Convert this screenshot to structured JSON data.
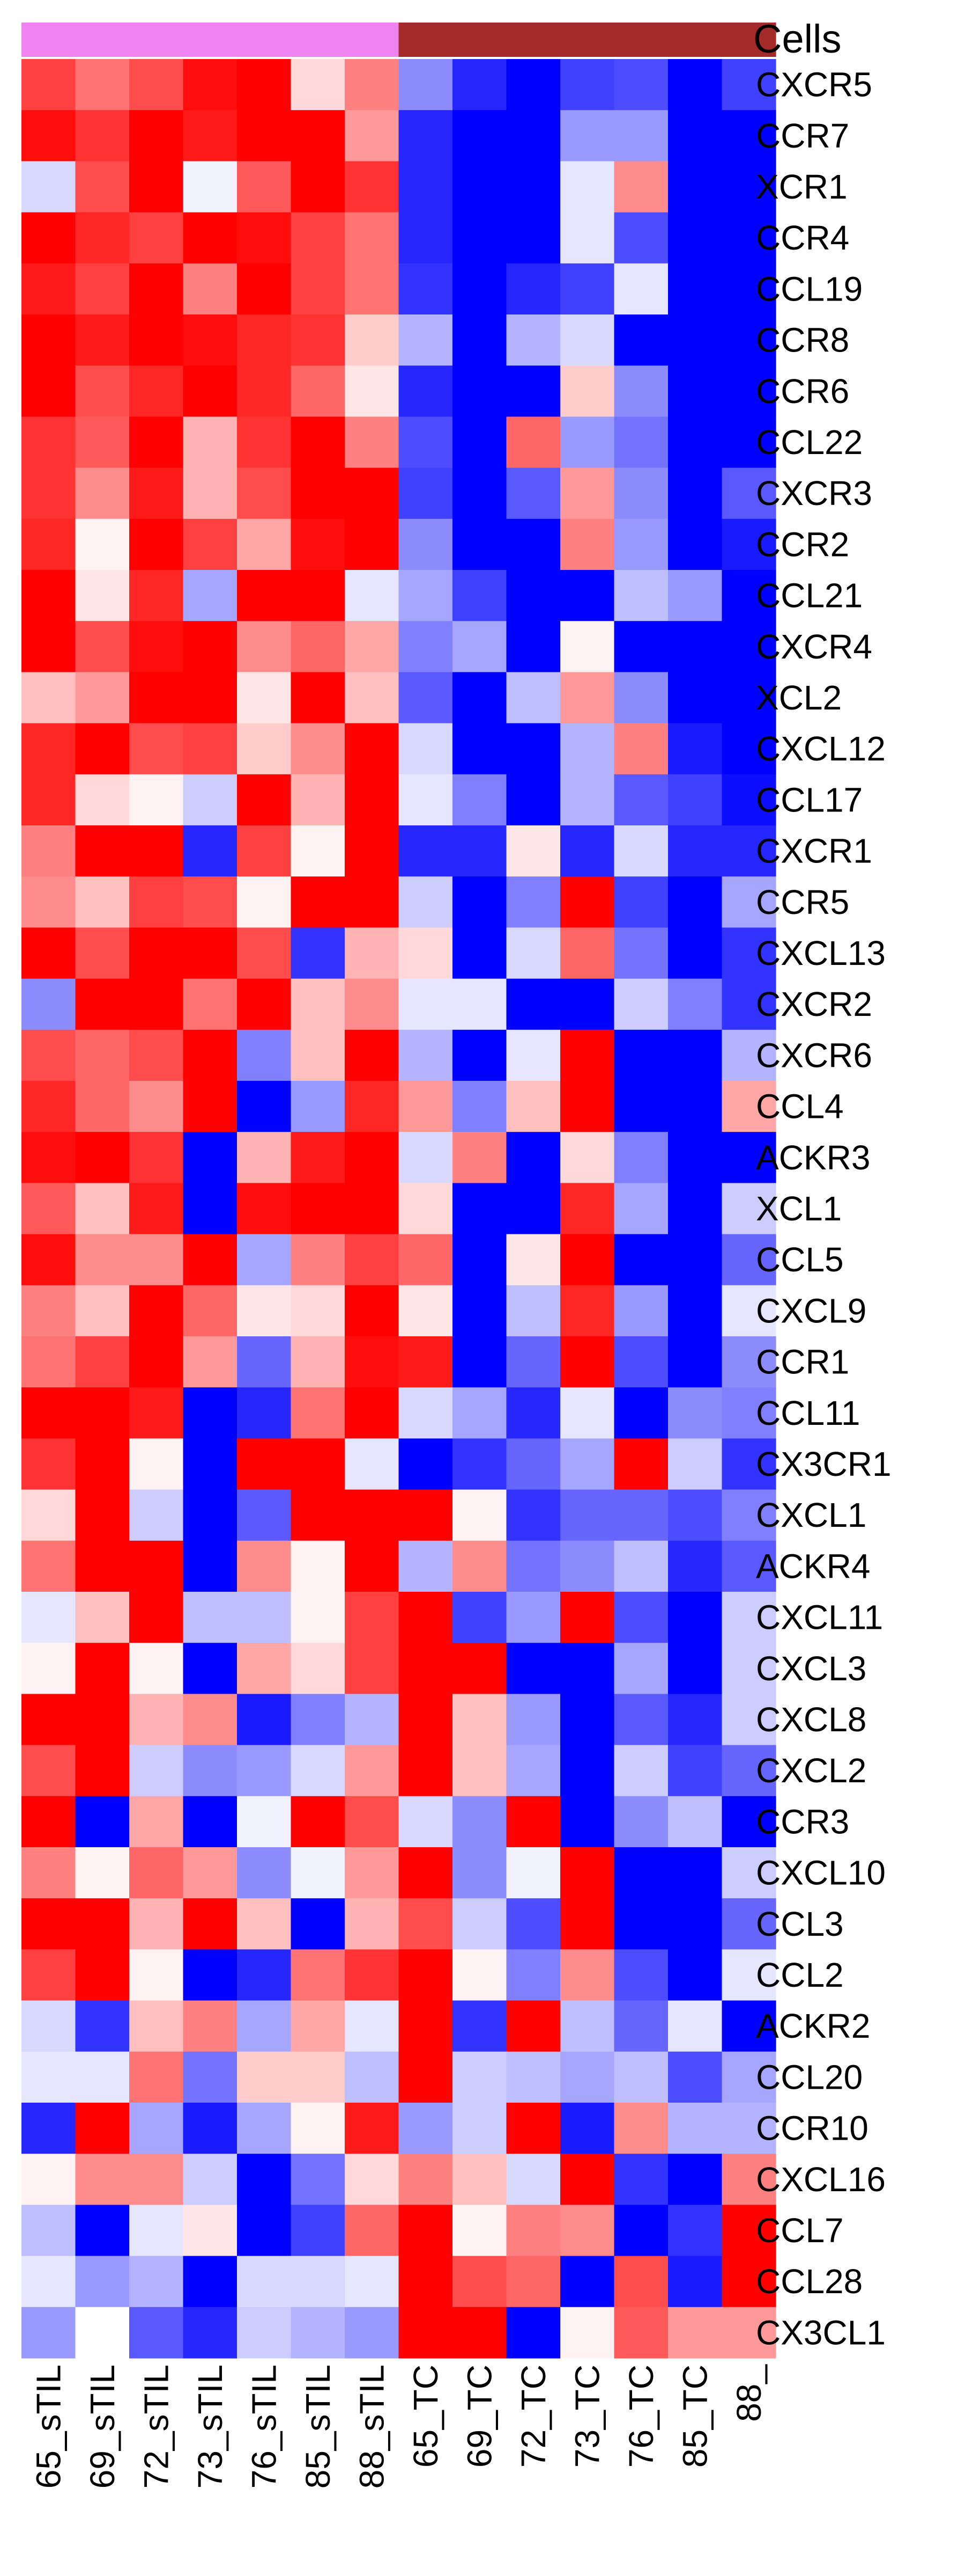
{
  "chart_data": {
    "type": "heatmap",
    "annotation": {
      "label": "Cells",
      "groups": [
        {
          "color": "#EE82EE",
          "columns": [
            "65_sTIL",
            "69_sTIL",
            "72_sTIL",
            "73_sTIL",
            "76_sTIL",
            "85_sTIL",
            "88_sTIL"
          ]
        },
        {
          "color": "#A52A2A",
          "columns": [
            "65_TC",
            "69_TC",
            "72_TC",
            "73_TC",
            "76_TC",
            "85_TC",
            "88_"
          ]
        }
      ]
    },
    "columns": [
      "65_sTIL",
      "69_sTIL",
      "72_sTIL",
      "73_sTIL",
      "76_sTIL",
      "85_sTIL",
      "88_sTIL",
      "65_TC",
      "69_TC",
      "72_TC",
      "73_TC",
      "76_TC",
      "85_TC",
      "88_"
    ],
    "rows": [
      "CXCR5",
      "CCR7",
      "XCR1",
      "CCR4",
      "CCL19",
      "CCR8",
      "CCR6",
      "CCL22",
      "CXCR3",
      "CCR2",
      "CCL21",
      "CXCR4",
      "XCL2",
      "CXCL12",
      "CCL17",
      "CXCR1",
      "CCR5",
      "CXCL13",
      "CXCR2",
      "CXCR6",
      "CCL4",
      "ACKR3",
      "XCL1",
      "CCL5",
      "CXCL9",
      "CCR1",
      "CCL11",
      "CX3CR1",
      "CXCL1",
      "ACKR4",
      "CXCL11",
      "CXCL3",
      "CXCL8",
      "CXCL2",
      "CCR3",
      "CXCL10",
      "CCL3",
      "CCL2",
      "ACKR2",
      "CCL20",
      "CCR10",
      "CXCL16",
      "CCL7",
      "CCL28",
      "CX3CL1"
    ],
    "colorscale": {
      "low": "#0000FF",
      "mid": "#FFFFFF",
      "high": "#FF0000",
      "range": [
        -1,
        1
      ]
    },
    "values": [
      [
        0.75,
        0.55,
        0.7,
        0.95,
        1.0,
        0.15,
        0.5,
        -0.45,
        -0.85,
        -1.0,
        -0.75,
        -0.7,
        -1.0,
        -0.75
      ],
      [
        0.95,
        0.8,
        1.0,
        0.9,
        1.0,
        1.0,
        0.4,
        -0.85,
        -1.0,
        -1.0,
        -0.4,
        -0.4,
        -1.0,
        -1.0
      ],
      [
        -0.15,
        0.7,
        1.0,
        -0.05,
        0.65,
        1.0,
        0.8,
        -0.85,
        -1.0,
        -1.0,
        -0.1,
        0.45,
        -1.0,
        -1.0
      ],
      [
        1.0,
        0.85,
        0.75,
        1.0,
        0.95,
        0.75,
        0.55,
        -0.85,
        -1.0,
        -1.0,
        -0.1,
        -0.7,
        -1.0,
        -1.0
      ],
      [
        0.9,
        0.75,
        1.0,
        0.5,
        1.0,
        0.75,
        0.55,
        -0.8,
        -1.0,
        -0.85,
        -0.75,
        -0.1,
        -1.0,
        -1.0
      ],
      [
        1.0,
        0.9,
        1.0,
        0.95,
        0.85,
        0.8,
        0.2,
        -0.3,
        -1.0,
        -0.3,
        -0.15,
        -1.0,
        -1.0,
        -1.0
      ],
      [
        1.0,
        0.7,
        0.85,
        1.0,
        0.85,
        0.6,
        0.1,
        -0.85,
        -1.0,
        -1.0,
        0.2,
        -0.45,
        -1.0,
        -1.0
      ],
      [
        0.8,
        0.65,
        1.0,
        0.3,
        0.8,
        1.0,
        0.5,
        -0.7,
        -1.0,
        0.6,
        -0.4,
        -0.55,
        -1.0,
        -1.0
      ],
      [
        0.8,
        0.45,
        0.9,
        0.3,
        0.7,
        1.0,
        1.0,
        -0.75,
        -1.0,
        -0.65,
        0.4,
        -0.45,
        -1.0,
        -0.65
      ],
      [
        0.85,
        0.05,
        1.0,
        0.75,
        0.35,
        0.95,
        1.0,
        -0.45,
        -1.0,
        -1.0,
        0.5,
        -0.4,
        -1.0,
        -0.9
      ],
      [
        1.0,
        0.1,
        0.85,
        -0.35,
        1.0,
        1.0,
        -0.1,
        -0.35,
        -0.75,
        -1.0,
        -1.0,
        -0.25,
        -0.4,
        -1.0
      ],
      [
        1.0,
        0.7,
        0.95,
        1.0,
        0.45,
        0.6,
        0.35,
        -0.5,
        -0.35,
        -1.0,
        0.05,
        -1.0,
        -1.0,
        -1.0
      ],
      [
        0.25,
        0.4,
        1.0,
        1.0,
        0.1,
        1.0,
        0.25,
        -0.65,
        -1.0,
        -0.25,
        0.4,
        -0.45,
        -1.0,
        -1.0
      ],
      [
        0.85,
        1.0,
        0.7,
        0.75,
        0.2,
        0.45,
        1.0,
        -0.15,
        -1.0,
        -1.0,
        -0.3,
        0.5,
        -0.9,
        -1.0
      ],
      [
        0.85,
        0.15,
        0.05,
        -0.2,
        1.0,
        0.3,
        1.0,
        -0.1,
        -0.5,
        -1.0,
        -0.3,
        -0.65,
        -0.75,
        -0.95
      ],
      [
        0.5,
        1.0,
        1.0,
        -0.85,
        0.75,
        0.05,
        1.0,
        -0.85,
        -0.85,
        0.1,
        -0.85,
        -0.15,
        -0.85,
        -0.85
      ],
      [
        0.45,
        0.25,
        0.75,
        0.7,
        0.05,
        1.0,
        1.0,
        -0.2,
        -1.0,
        -0.5,
        1.0,
        -0.75,
        -1.0,
        -0.35
      ],
      [
        1.0,
        0.7,
        1.0,
        1.0,
        0.7,
        -0.8,
        0.3,
        0.15,
        -1.0,
        -0.15,
        0.6,
        -0.55,
        -1.0,
        -0.8
      ],
      [
        -0.45,
        1.0,
        1.0,
        0.55,
        1.0,
        0.25,
        0.45,
        -0.1,
        -0.1,
        -1.0,
        -1.0,
        -0.2,
        -0.5,
        -0.8
      ],
      [
        0.7,
        0.6,
        0.7,
        1.0,
        -0.5,
        0.25,
        1.0,
        -0.3,
        -1.0,
        -0.1,
        1.0,
        -1.0,
        -1.0,
        -0.3
      ],
      [
        0.85,
        0.6,
        0.45,
        1.0,
        -1.0,
        -0.4,
        0.85,
        0.4,
        -0.5,
        0.25,
        1.0,
        -1.0,
        -1.0,
        0.35
      ],
      [
        0.95,
        1.0,
        0.8,
        -1.0,
        0.3,
        0.9,
        1.0,
        -0.15,
        0.5,
        -1.0,
        0.15,
        -0.5,
        -1.0,
        -1.0
      ],
      [
        0.65,
        0.25,
        0.9,
        -1.0,
        0.95,
        1.0,
        1.0,
        0.15,
        -1.0,
        -1.0,
        0.85,
        -0.35,
        -1.0,
        -0.2
      ],
      [
        0.95,
        0.45,
        0.45,
        1.0,
        -0.35,
        0.5,
        0.75,
        0.6,
        -1.0,
        0.1,
        1.0,
        -1.0,
        -1.0,
        -0.6
      ],
      [
        0.5,
        0.25,
        1.0,
        0.6,
        0.1,
        0.15,
        1.0,
        0.1,
        -1.0,
        -0.25,
        0.85,
        -0.4,
        -1.0,
        -0.1
      ],
      [
        0.55,
        0.75,
        1.0,
        0.4,
        -0.6,
        0.3,
        0.95,
        0.9,
        -1.0,
        -0.6,
        1.0,
        -0.7,
        -1.0,
        -0.45
      ],
      [
        1.0,
        1.0,
        0.9,
        -1.0,
        -0.85,
        0.55,
        1.0,
        -0.15,
        -0.35,
        -0.85,
        -0.1,
        -1.0,
        -0.45,
        -0.5
      ],
      [
        0.8,
        1.0,
        0.05,
        -1.0,
        1.0,
        1.0,
        -0.1,
        -1.0,
        -0.8,
        -0.6,
        -0.35,
        1.0,
        -0.2,
        -0.8
      ],
      [
        0.15,
        1.0,
        -0.2,
        -1.0,
        -0.65,
        1.0,
        1.0,
        1.0,
        0.05,
        -0.8,
        -0.6,
        -0.6,
        -0.7,
        -0.5
      ],
      [
        0.55,
        1.0,
        1.0,
        -1.0,
        0.45,
        0.05,
        1.0,
        -0.3,
        0.45,
        -0.55,
        -0.45,
        -0.25,
        -0.85,
        -0.65
      ],
      [
        -0.1,
        0.25,
        1.0,
        -0.25,
        -0.25,
        0.05,
        0.75,
        1.0,
        -0.75,
        -0.4,
        1.0,
        -0.7,
        -1.0,
        -0.2
      ],
      [
        0.05,
        1.0,
        0.05,
        -1.0,
        0.35,
        0.15,
        0.75,
        1.0,
        1.0,
        -1.0,
        -1.0,
        -0.35,
        -1.0,
        -0.2
      ],
      [
        1.0,
        1.0,
        0.3,
        0.45,
        -0.9,
        -0.5,
        -0.3,
        1.0,
        0.25,
        -0.4,
        -1.0,
        -0.65,
        -0.85,
        -0.2
      ],
      [
        0.7,
        1.0,
        -0.2,
        -0.45,
        -0.4,
        -0.15,
        0.4,
        1.0,
        0.25,
        -0.35,
        -1.0,
        -0.2,
        -0.75,
        -0.6
      ],
      [
        1.0,
        -1.0,
        0.35,
        -1.0,
        -0.05,
        1.0,
        0.7,
        -0.15,
        -0.45,
        1.0,
        -1.0,
        -0.45,
        -0.25,
        -1.0
      ],
      [
        0.5,
        0.05,
        0.6,
        0.4,
        -0.45,
        -0.05,
        0.4,
        1.0,
        -0.45,
        -0.05,
        1.0,
        -1.0,
        -1.0,
        -0.2
      ],
      [
        1.0,
        1.0,
        0.3,
        1.0,
        0.25,
        -1.0,
        0.3,
        0.7,
        -0.2,
        -0.7,
        1.0,
        -1.0,
        -1.0,
        -0.6
      ],
      [
        0.75,
        1.0,
        0.05,
        -1.0,
        -0.85,
        0.55,
        0.8,
        1.0,
        0.05,
        -0.5,
        0.45,
        -0.7,
        -1.0,
        -0.1
      ],
      [
        -0.15,
        -0.8,
        0.25,
        0.5,
        -0.35,
        0.35,
        -0.1,
        1.0,
        -0.8,
        1.0,
        -0.25,
        -0.6,
        -0.1,
        -1.0
      ],
      [
        -0.1,
        -0.1,
        0.55,
        -0.55,
        0.2,
        0.2,
        -0.25,
        1.0,
        -0.2,
        -0.25,
        -0.35,
        -0.25,
        -0.7,
        -0.35
      ],
      [
        -0.85,
        1.0,
        -0.35,
        -0.9,
        -0.35,
        0.05,
        0.9,
        -0.4,
        -0.2,
        1.0,
        -0.9,
        0.45,
        -0.3,
        -0.3
      ],
      [
        0.05,
        0.45,
        0.45,
        -0.2,
        -1.0,
        -0.55,
        0.15,
        0.5,
        0.25,
        -0.15,
        1.0,
        -0.8,
        -1.0,
        0.5
      ],
      [
        -0.25,
        -1.0,
        -0.1,
        0.1,
        -1.0,
        -0.75,
        0.6,
        1.0,
        0.05,
        0.5,
        0.45,
        -1.0,
        -0.8,
        1.0
      ],
      [
        -0.1,
        -0.4,
        -0.3,
        -1.0,
        -0.15,
        -0.15,
        -0.1,
        1.0,
        0.7,
        0.6,
        -1.0,
        0.7,
        -0.9,
        1.0
      ],
      [
        -0.4,
        0.0,
        -0.65,
        -0.85,
        -0.2,
        -0.3,
        -0.4,
        1.0,
        1.0,
        -1.0,
        0.05,
        0.65,
        0.4,
        0.4
      ]
    ]
  }
}
